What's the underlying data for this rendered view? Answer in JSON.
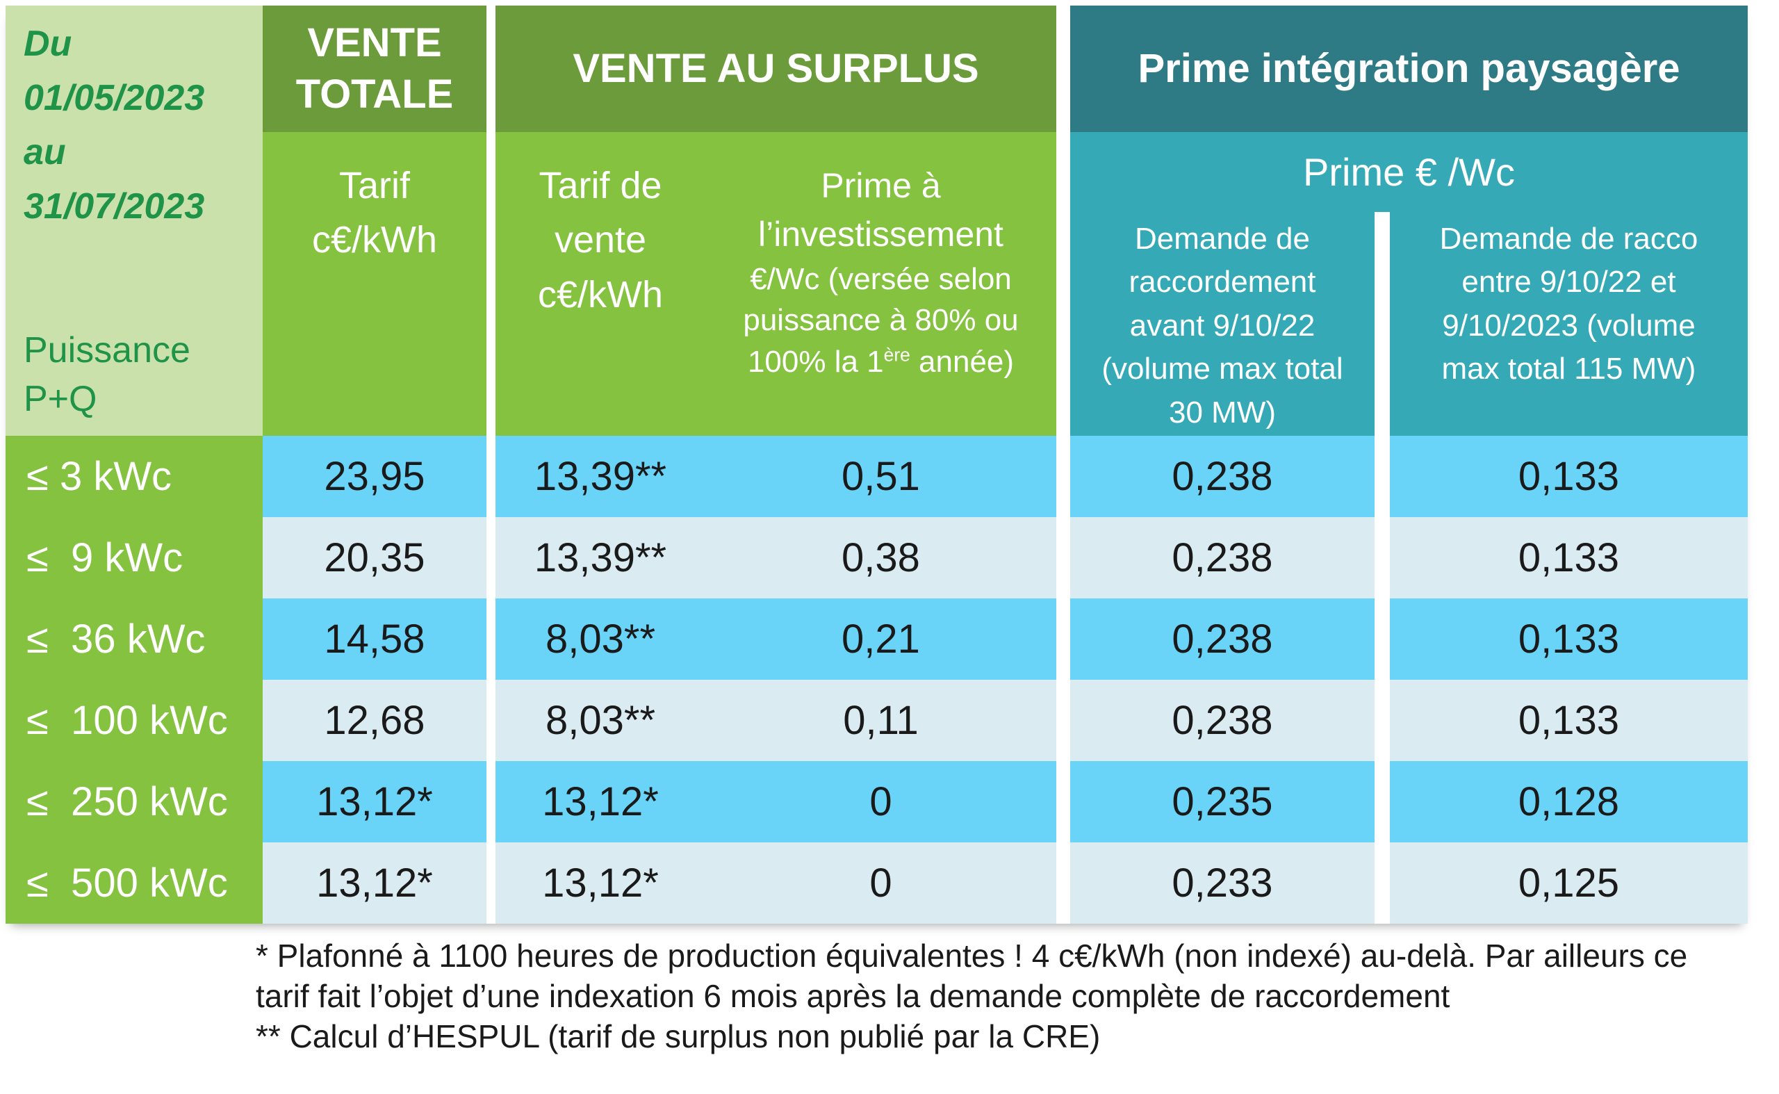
{
  "colors": {
    "lightGreen": "#CBE1AC",
    "darkGreenText": "#1F9347",
    "oliveGreen": "#6C9B3B",
    "mediumGreen": "#84C23F",
    "darkTeal": "#2E7B85",
    "mediumTeal": "#36A9B6",
    "brightBlue": "#69D3F8",
    "paleBlue": "#DAECF2",
    "dataText": "#1A1A1A"
  },
  "header": {
    "period_lines": [
      "Du",
      "01/05/2023",
      "au",
      "31/07/2023"
    ],
    "power_lines": [
      "Puissance",
      "P+Q"
    ]
  },
  "vente_totale": {
    "title": "VENTE TOTALE",
    "subtitle_lines": [
      "Tarif",
      "c€/kWh"
    ]
  },
  "surplus": {
    "title": "VENTE AU SURPLUS",
    "tarif_lines": [
      "Tarif de",
      "vente",
      "c€/kWh"
    ],
    "prime_main_lines": [
      "Prime à",
      "l’investissement"
    ],
    "prime_detail_lines": [
      "€/Wc (versée selon",
      "puissance à 80% ou"
    ],
    "prime_detail_last": {
      "pre": "100% la 1",
      "sup": "ère",
      "post": " année)"
    }
  },
  "paysagere": {
    "title": "Prime intégration paysagère",
    "subtitle": "Prime € /Wc",
    "col_avant_lines": [
      "Demande de",
      "raccordement",
      "avant 9/10/22",
      "(volume max total",
      "30 MW)"
    ],
    "col_entre_lines": [
      "Demande de racco",
      "entre 9/10/22 et",
      "9/10/2023 (volume",
      "max total 115 MW)"
    ]
  },
  "rows": [
    {
      "label": "≤ 3 kWc",
      "vente_totale": "23,95",
      "surplus_tarif": "13,39**",
      "prime_invest": "0,51",
      "prime_avant": "0,238",
      "prime_entre": "0,133"
    },
    {
      "label": "≤  9 kWc",
      "vente_totale": "20,35",
      "surplus_tarif": "13,39**",
      "prime_invest": "0,38",
      "prime_avant": "0,238",
      "prime_entre": "0,133"
    },
    {
      "label": "≤  36 kWc",
      "vente_totale": "14,58",
      "surplus_tarif": "8,03**",
      "prime_invest": "0,21",
      "prime_avant": "0,238",
      "prime_entre": "0,133"
    },
    {
      "label": "≤  100 kWc",
      "vente_totale": "12,68",
      "surplus_tarif": "8,03**",
      "prime_invest": "0,11",
      "prime_avant": "0,238",
      "prime_entre": "0,133"
    },
    {
      "label": "≤  250 kWc",
      "vente_totale": "13,12*",
      "surplus_tarif": "13,12*",
      "prime_invest": "0",
      "prime_avant": "0,235",
      "prime_entre": "0,128"
    },
    {
      "label": "≤  500 kWc",
      "vente_totale": "13,12*",
      "surplus_tarif": "13,12*",
      "prime_invest": "0",
      "prime_avant": "0,233",
      "prime_entre": "0,125"
    }
  ],
  "footnotes": [
    "* Plafonné à 1100 heures de production équivalentes ! 4 c€/kWh (non indexé) au-delà. Par ailleurs ce",
    "tarif fait l’objet d’une indexation 6 mois après la demande complète de raccordement",
    "** Calcul d’HESPUL (tarif de surplus non publié par la CRE)"
  ]
}
